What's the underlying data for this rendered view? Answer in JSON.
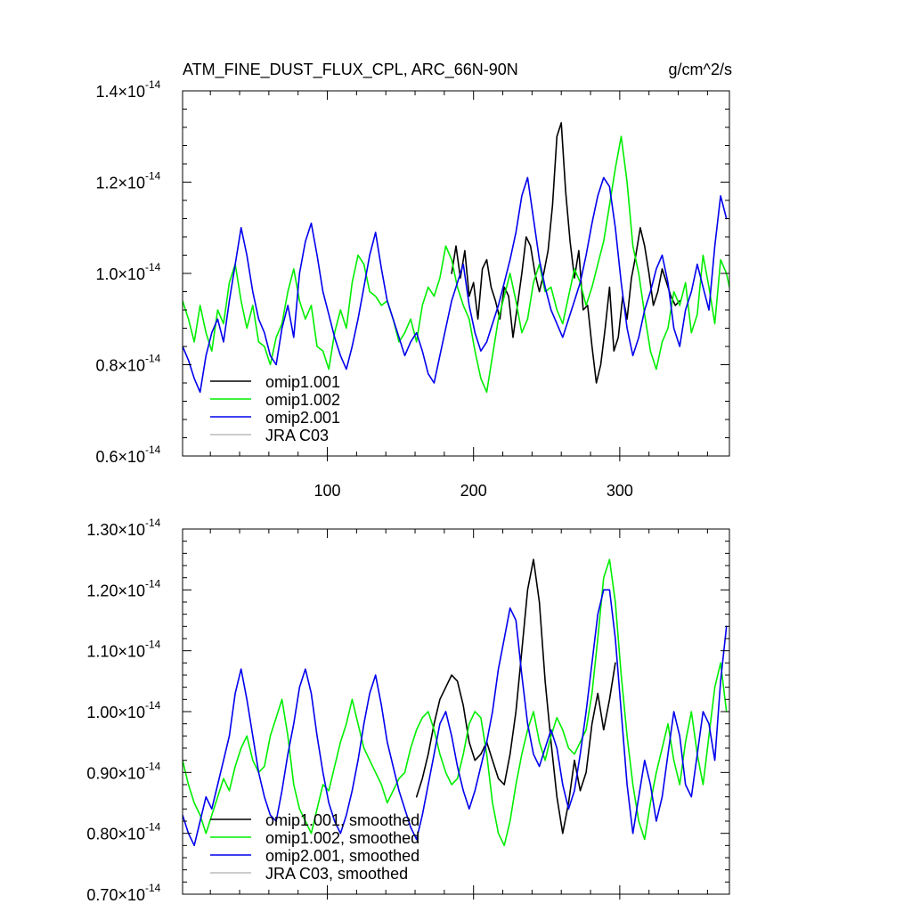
{
  "chart_data": [
    {
      "type": "line",
      "title": "ATM_FINE_DUST_FLUX_CPL, ARC_66N-90N",
      "units": "g/cm^2/s",
      "xlabel": "",
      "ylabel": "",
      "xlim": [
        1,
        375
      ],
      "ylim": [
        0.6,
        1.4
      ],
      "y_multiplier": "×10",
      "y_exponent": "-14",
      "xticks": [
        100,
        200,
        300
      ],
      "yticks": [
        0.6,
        0.8,
        1.0,
        1.2,
        1.4
      ],
      "ytick_labels": [
        "0.6",
        "0.8",
        "1.0",
        "1.2",
        "1.4"
      ],
      "legend_position": "bottom-left",
      "series": [
        {
          "name": "omip1.001",
          "color": "#000000",
          "x_start": 185,
          "x_step": 3,
          "values": [
            1.0,
            1.06,
            0.99,
            1.05,
            0.95,
            0.98,
            0.9,
            1.01,
            1.03,
            0.97,
            0.94,
            0.9,
            0.97,
            0.95,
            0.86,
            0.93,
            1.0,
            1.08,
            1.06,
            1.0,
            0.96,
            1.0,
            1.05,
            1.15,
            1.3,
            1.33,
            1.18,
            1.07,
            0.99,
            1.05,
            0.92,
            0.93,
            0.84,
            0.76,
            0.8,
            0.88,
            0.97,
            0.83,
            0.86,
            0.95,
            0.9,
            0.99,
            1.04,
            1.1,
            1.06,
            1.0,
            0.93,
            0.96,
            1.01,
            0.98,
            0.95,
            0.93,
            0.94
          ]
        },
        {
          "name": "omip1.002",
          "color": "#00ee00",
          "x_start": 1,
          "x_step": 4,
          "values": [
            0.94,
            0.9,
            0.85,
            0.93,
            0.87,
            0.83,
            0.92,
            0.89,
            0.98,
            1.02,
            0.94,
            0.88,
            0.93,
            0.85,
            0.84,
            0.8,
            0.86,
            0.89,
            0.96,
            1.01,
            0.94,
            0.9,
            0.93,
            0.84,
            0.83,
            0.79,
            0.87,
            0.92,
            0.88,
            0.98,
            1.04,
            1.02,
            0.96,
            0.95,
            0.93,
            0.94,
            0.9,
            0.85,
            0.87,
            0.9,
            0.85,
            0.93,
            0.97,
            0.95,
            0.99,
            1.06,
            1.03,
            0.97,
            0.93,
            0.9,
            0.83,
            0.77,
            0.74,
            0.82,
            0.9,
            0.95,
            1.0,
            0.94,
            0.87,
            0.9,
            0.98,
            1.02,
            0.96,
            0.97,
            0.92,
            0.89,
            0.95,
            1.01,
            0.98,
            0.93,
            0.97,
            1.02,
            1.07,
            1.15,
            1.23,
            1.3,
            1.2,
            1.06,
            1.0,
            0.91,
            0.83,
            0.79,
            0.85,
            0.88,
            0.96,
            0.93,
            0.98,
            0.87,
            0.91,
            1.04,
            0.97,
            0.89,
            1.03,
            1.0,
            0.94
          ]
        },
        {
          "name": "omip2.001",
          "color": "#0000ee",
          "x_start": 1,
          "x_step": 4,
          "values": [
            0.84,
            0.81,
            0.77,
            0.74,
            0.82,
            0.87,
            0.9,
            0.85,
            0.94,
            1.02,
            1.1,
            1.04,
            0.96,
            0.9,
            0.87,
            0.82,
            0.8,
            0.88,
            0.93,
            0.86,
            1.0,
            1.07,
            1.11,
            1.04,
            0.96,
            0.91,
            0.86,
            0.82,
            0.79,
            0.84,
            0.9,
            0.97,
            1.04,
            1.09,
            1.01,
            0.94,
            0.9,
            0.86,
            0.82,
            0.85,
            0.87,
            0.83,
            0.78,
            0.76,
            0.82,
            0.88,
            0.94,
            0.98,
            1.02,
            0.93,
            0.87,
            0.83,
            0.85,
            0.89,
            0.93,
            0.98,
            1.03,
            1.09,
            1.17,
            1.21,
            1.12,
            1.03,
            0.97,
            0.92,
            0.89,
            0.86,
            0.9,
            0.94,
            0.98,
            1.04,
            1.11,
            1.17,
            1.21,
            1.19,
            1.1,
            0.98,
            0.88,
            0.82,
            0.86,
            0.92,
            0.96,
            1.01,
            1.04,
            0.98,
            0.88,
            0.84,
            0.92,
            0.96,
            1.02,
            0.97,
            0.92,
            1.06,
            1.17,
            1.12
          ]
        },
        {
          "name": "JRA C03",
          "color": "#bbbbbb",
          "values": []
        }
      ]
    },
    {
      "type": "line",
      "title": "",
      "xlabel": "",
      "ylabel": "",
      "xlim": [
        1,
        375
      ],
      "ylim": [
        0.7,
        1.3
      ],
      "y_multiplier": "×10",
      "y_exponent": "-14",
      "xticks": [
        100,
        200,
        300
      ],
      "yticks": [
        0.7,
        0.8,
        0.9,
        1.0,
        1.1,
        1.2,
        1.3
      ],
      "ytick_labels": [
        "0.70",
        "0.80",
        "0.90",
        "1.00",
        "1.10",
        "1.20",
        "1.30"
      ],
      "legend_position": "bottom-left",
      "series": [
        {
          "name": "omip1.001, smoothed",
          "color": "#000000",
          "x_start": 161,
          "x_step": 4,
          "values": [
            0.86,
            0.89,
            0.93,
            0.98,
            1.02,
            1.04,
            1.06,
            1.05,
            1.01,
            0.95,
            0.92,
            0.93,
            0.95,
            0.92,
            0.89,
            0.88,
            0.93,
            1.0,
            1.1,
            1.2,
            1.25,
            1.18,
            1.05,
            0.95,
            0.86,
            0.8,
            0.85,
            0.92,
            0.87,
            0.9,
            0.98,
            1.03,
            0.97,
            1.02,
            1.08
          ]
        },
        {
          "name": "omip1.002, smoothed",
          "color": "#00ee00",
          "x_start": 1,
          "x_step": 4,
          "values": [
            0.92,
            0.88,
            0.85,
            0.83,
            0.8,
            0.83,
            0.86,
            0.89,
            0.87,
            0.91,
            0.94,
            0.96,
            0.92,
            0.9,
            0.91,
            0.96,
            0.99,
            1.02,
            0.96,
            0.88,
            0.84,
            0.82,
            0.8,
            0.84,
            0.88,
            0.87,
            0.91,
            0.95,
            0.98,
            1.02,
            0.98,
            0.94,
            0.92,
            0.9,
            0.88,
            0.85,
            0.87,
            0.89,
            0.9,
            0.94,
            0.97,
            0.99,
            1.0,
            0.97,
            0.93,
            0.9,
            0.88,
            0.89,
            0.93,
            0.98,
            1.0,
            0.99,
            0.93,
            0.85,
            0.8,
            0.78,
            0.82,
            0.88,
            0.93,
            0.97,
            1.0,
            0.95,
            0.92,
            0.96,
            0.99,
            0.97,
            0.94,
            0.93,
            0.95,
            0.97,
            1.03,
            1.12,
            1.22,
            1.25,
            1.18,
            1.06,
            0.96,
            0.88,
            0.82,
            0.79,
            0.85,
            0.9,
            0.94,
            0.98,
            0.92,
            0.88,
            0.95,
            1.0,
            0.93,
            0.88,
            0.96,
            1.04,
            1.08,
            1.0
          ]
        },
        {
          "name": "omip2.001, smoothed",
          "color": "#0000ee",
          "x_start": 1,
          "x_step": 4,
          "values": [
            0.83,
            0.8,
            0.78,
            0.82,
            0.86,
            0.84,
            0.88,
            0.92,
            0.96,
            1.03,
            1.07,
            1.02,
            0.96,
            0.9,
            0.86,
            0.83,
            0.82,
            0.87,
            0.93,
            0.98,
            1.04,
            1.07,
            1.03,
            0.96,
            0.9,
            0.85,
            0.82,
            0.8,
            0.83,
            0.87,
            0.92,
            0.98,
            1.03,
            1.06,
            1.01,
            0.95,
            0.91,
            0.87,
            0.84,
            0.81,
            0.79,
            0.83,
            0.88,
            0.93,
            0.98,
            1.0,
            0.96,
            0.91,
            0.87,
            0.84,
            0.87,
            0.91,
            0.95,
            1.0,
            1.07,
            1.12,
            1.17,
            1.15,
            1.06,
            0.98,
            0.93,
            0.91,
            0.94,
            0.97,
            0.94,
            0.88,
            0.84,
            0.87,
            0.93,
            1.0,
            1.08,
            1.16,
            1.2,
            1.2,
            1.12,
            1.0,
            0.88,
            0.8,
            0.86,
            0.92,
            0.88,
            0.82,
            0.86,
            0.93,
            1.0,
            0.96,
            0.88,
            0.86,
            0.93,
            1.0,
            0.98,
            0.92,
            1.05,
            1.14
          ]
        },
        {
          "name": "JRA C03, smoothed",
          "color": "#bbbbbb",
          "values": []
        }
      ]
    }
  ]
}
